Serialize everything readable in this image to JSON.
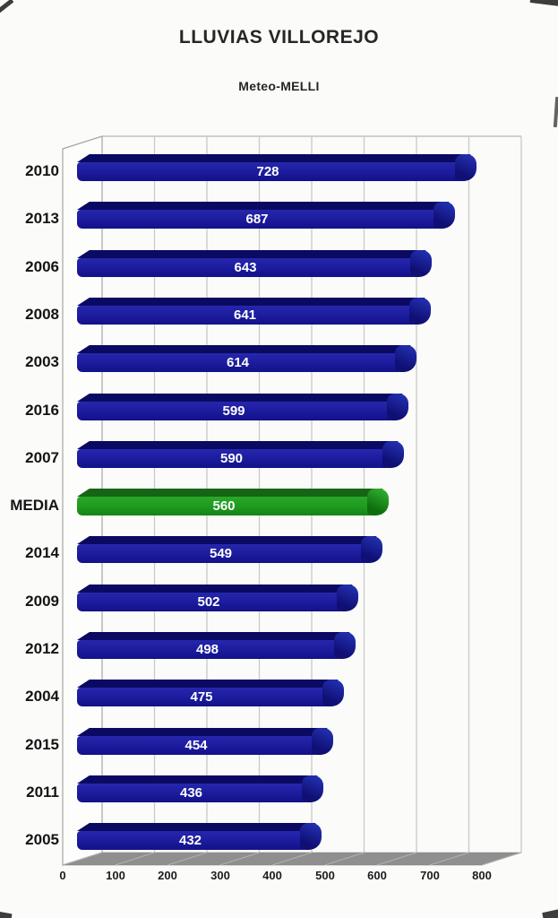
{
  "title": "LLUVIAS VILLOREJO",
  "subtitle": "Meteo-MELLI",
  "chart_data": {
    "type": "bar",
    "orientation": "horizontal",
    "title": "LLUVIAS VILLOREJO",
    "subtitle": "Meteo-MELLI",
    "categories": [
      "2010",
      "2013",
      "2006",
      "2008",
      "2003",
      "2016",
      "2007",
      "MEDIA",
      "2014",
      "2009",
      "2012",
      "2004",
      "2015",
      "2011",
      "2005"
    ],
    "values": [
      728,
      687,
      643,
      641,
      614,
      599,
      590,
      560,
      549,
      502,
      498,
      475,
      454,
      436,
      432
    ],
    "highlight_category": "MEDIA",
    "value_labels_position": "inside-center",
    "value_label_color": "#ffffff",
    "xlim": [
      0,
      800
    ],
    "x_ticks": [
      0,
      100,
      200,
      300,
      400,
      500,
      600,
      700,
      800
    ],
    "grid": true,
    "style": "3d-horizontal-bars",
    "colors": {
      "bar_face": "#1b1b9c",
      "bar_face_light": "#2727ae",
      "bar_face_dark": "#121288",
      "bar_top": "#0a0a63",
      "bar_cap_light": "#2330b0",
      "bar_cap_dark": "#0f0f74",
      "media_face": "#1e9a1e",
      "media_face_light": "#2aa82a",
      "media_face_dark": "#178117",
      "media_top": "#156515",
      "media_cap_light": "#30ad30",
      "media_cap_dark": "#0e6e0e",
      "gridline": "#c9c9c9",
      "wall_border": "#a5a5a5",
      "floor": "#8f8f8f",
      "floor_streak": "#b2b2b2",
      "background": "#fbfbfa"
    }
  }
}
